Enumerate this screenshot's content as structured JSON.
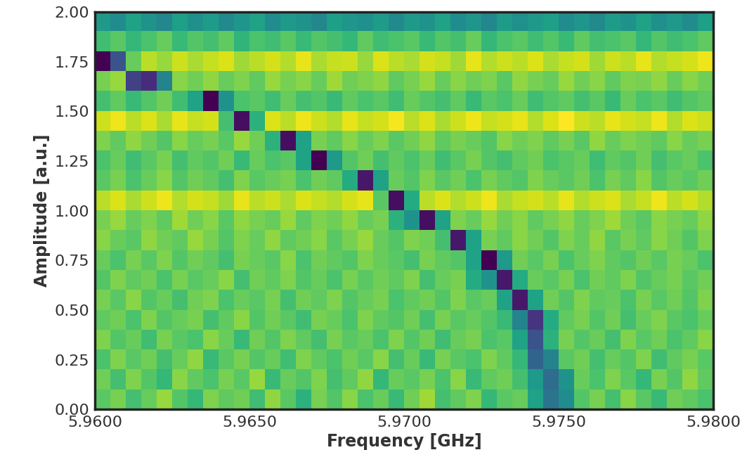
{
  "chart_data": {
    "type": "heatmap",
    "x_label": "Frequency [GHz]",
    "y_label": "Amplitude [a.u.]",
    "xlim": [
      5.96,
      5.98
    ],
    "ylim": [
      0,
      2.0
    ],
    "xticks": [
      {
        "value": 5.96,
        "label": "5.9600"
      },
      {
        "value": 5.965,
        "label": "5.9650"
      },
      {
        "value": 5.97,
        "label": "5.9700"
      },
      {
        "value": 5.975,
        "label": "5.9750"
      },
      {
        "value": 5.98,
        "label": "5.9800"
      }
    ],
    "yticks": [
      {
        "value": 0,
        "label": "0.00"
      },
      {
        "value": 0.25,
        "label": "0.25"
      },
      {
        "value": 0.5,
        "label": "0.50"
      },
      {
        "value": 0.75,
        "label": "0.75"
      },
      {
        "value": 1.0,
        "label": "1.00"
      },
      {
        "value": 1.25,
        "label": "1.25"
      },
      {
        "value": 1.5,
        "label": "1.50"
      },
      {
        "value": 1.75,
        "label": "1.75"
      },
      {
        "value": 2.0,
        "label": "2.00"
      }
    ],
    "grid": false,
    "cells": [
      [
        58,
        62,
        55,
        60,
        66,
        57,
        52,
        63,
        59,
        61,
        54,
        65,
        58,
        50,
        62,
        57,
        64,
        56,
        60,
        53,
        61,
        67,
        55,
        59,
        63,
        52,
        58,
        60,
        45,
        30,
        38,
        57,
        62,
        55,
        64,
        58,
        53,
        61,
        59,
        56
      ],
      [
        61,
        55,
        63,
        57,
        52,
        64,
        59,
        56,
        62,
        58,
        66,
        53,
        60,
        57,
        63,
        55,
        59,
        65,
        52,
        60,
        58,
        62,
        56,
        64,
        53,
        59,
        61,
        55,
        42,
        28,
        40,
        60,
        56,
        63,
        58,
        52,
        62,
        57,
        65,
        59
      ],
      [
        56,
        63,
        58,
        61,
        55,
        60,
        65,
        53,
        58,
        62,
        57,
        60,
        54,
        63,
        59,
        56,
        61,
        58,
        64,
        55,
        60,
        53,
        62,
        58,
        56,
        63,
        59,
        52,
        25,
        35,
        58,
        61,
        55,
        60,
        57,
        63,
        54,
        59,
        62,
        58
      ],
      [
        63,
        57,
        60,
        54,
        62,
        58,
        56,
        64,
        60,
        53,
        61,
        57,
        63,
        59,
        55,
        62,
        58,
        60,
        56,
        63,
        57,
        61,
        54,
        60,
        62,
        56,
        58,
        45,
        20,
        50,
        62,
        57,
        60,
        55,
        63,
        58,
        61,
        56,
        59,
        64
      ],
      [
        59,
        61,
        56,
        63,
        57,
        60,
        62,
        55,
        59,
        64,
        57,
        61,
        58,
        54,
        62,
        60,
        56,
        63,
        59,
        57,
        61,
        55,
        62,
        58,
        60,
        57,
        53,
        35,
        12,
        48,
        59,
        62,
        57,
        61,
        55,
        60,
        63,
        58,
        56,
        60
      ],
      [
        62,
        58,
        64,
        57,
        60,
        55,
        61,
        63,
        56,
        60,
        58,
        62,
        55,
        61,
        59,
        63,
        57,
        60,
        62,
        56,
        59,
        61,
        57,
        63,
        58,
        60,
        45,
        5,
        45,
        61,
        57,
        63,
        59,
        60,
        56,
        62,
        58,
        61,
        57,
        63
      ],
      [
        57,
        63,
        59,
        61,
        56,
        62,
        58,
        60,
        64,
        55,
        61,
        59,
        63,
        57,
        60,
        56,
        62,
        58,
        61,
        59,
        63,
        55,
        60,
        62,
        48,
        40,
        5,
        48,
        60,
        58,
        62,
        56,
        61,
        59,
        63,
        57,
        60,
        62,
        58,
        61
      ],
      [
        60,
        56,
        62,
        58,
        63,
        57,
        61,
        59,
        55,
        62,
        60,
        58,
        64,
        56,
        61,
        59,
        57,
        63,
        60,
        58,
        55,
        62,
        59,
        57,
        45,
        0,
        42,
        61,
        58,
        62,
        56,
        60,
        63,
        59,
        57,
        61,
        58,
        62,
        60,
        56
      ],
      [
        64,
        60,
        58,
        65,
        61,
        59,
        66,
        62,
        57,
        63,
        60,
        65,
        59,
        61,
        64,
        58,
        62,
        66,
        60,
        57,
        63,
        61,
        55,
        5,
        45,
        62,
        59,
        64,
        61,
        57,
        63,
        60,
        65,
        58,
        62,
        59,
        64,
        61,
        57,
        63
      ],
      [
        62,
        66,
        60,
        63,
        59,
        67,
        61,
        64,
        58,
        65,
        62,
        60,
        66,
        59,
        63,
        61,
        65,
        60,
        62,
        50,
        40,
        3,
        45,
        63,
        60,
        66,
        61,
        64,
        59,
        62,
        65,
        60,
        63,
        67,
        61,
        58,
        64,
        62,
        60,
        65
      ],
      [
        70,
        74,
        68,
        72,
        76,
        69,
        73,
        71,
        67,
        75,
        70,
        72,
        68,
        74,
        71,
        69,
        73,
        75,
        58,
        3,
        48,
        70,
        74,
        69,
        72,
        76,
        68,
        71,
        73,
        70,
        75,
        69,
        72,
        74,
        68,
        71,
        76,
        70,
        73,
        69
      ],
      [
        58,
        62,
        56,
        60,
        64,
        57,
        61,
        59,
        55,
        63,
        58,
        60,
        62,
        56,
        61,
        59,
        48,
        5,
        45,
        60,
        57,
        63,
        58,
        61,
        56,
        62,
        59,
        57,
        63,
        60,
        58,
        61,
        56,
        62,
        59,
        64,
        57,
        60,
        58,
        61
      ],
      [
        56,
        60,
        54,
        58,
        62,
        55,
        59,
        57,
        61,
        53,
        60,
        56,
        58,
        45,
        0,
        42,
        57,
        61,
        55,
        59,
        56,
        60,
        54,
        58,
        62,
        57,
        55,
        59,
        61,
        56,
        58,
        60,
        54,
        59,
        57,
        61,
        55,
        58,
        60,
        56
      ],
      [
        63,
        59,
        65,
        61,
        57,
        64,
        60,
        62,
        58,
        66,
        61,
        50,
        3,
        45,
        62,
        59,
        64,
        60,
        63,
        58,
        61,
        65,
        59,
        62,
        60,
        57,
        64,
        61,
        63,
        59,
        62,
        58,
        65,
        60,
        63,
        61,
        59,
        64,
        60,
        62
      ],
      [
        72,
        76,
        70,
        74,
        68,
        75,
        71,
        73,
        55,
        3,
        50,
        74,
        70,
        76,
        72,
        69,
        75,
        71,
        73,
        77,
        70,
        74,
        68,
        72,
        76,
        71,
        73,
        75,
        69,
        74,
        78,
        72,
        70,
        75,
        73,
        71,
        76,
        69,
        74,
        72
      ],
      [
        55,
        59,
        53,
        57,
        61,
        54,
        45,
        0,
        40,
        56,
        58,
        54,
        60,
        55,
        57,
        53,
        59,
        56,
        58,
        54,
        60,
        57,
        55,
        59,
        53,
        58,
        56,
        60,
        54,
        57,
        59,
        55,
        58,
        53,
        60,
        56,
        58,
        54,
        57,
        59
      ],
      [
        62,
        66,
        15,
        10,
        35,
        64,
        61,
        65,
        60,
        63,
        59,
        66,
        62,
        64,
        60,
        67,
        61,
        63,
        65,
        59,
        62,
        66,
        60,
        64,
        61,
        63,
        58,
        65,
        62,
        60,
        66,
        61,
        64,
        59,
        63,
        62,
        65,
        60,
        64,
        61
      ],
      [
        0,
        20,
        60,
        70,
        66,
        72,
        68,
        71,
        74,
        67,
        70,
        73,
        69,
        75,
        68,
        71,
        72,
        66,
        74,
        70,
        68,
        73,
        71,
        67,
        75,
        69,
        72,
        70,
        74,
        68,
        71,
        73,
        67,
        72,
        70,
        75,
        69,
        71,
        73,
        76
      ],
      [
        54,
        58,
        52,
        56,
        60,
        53,
        57,
        55,
        59,
        51,
        56,
        54,
        58,
        53,
        57,
        55,
        52,
        59,
        54,
        56,
        58,
        53,
        57,
        55,
        60,
        52,
        56,
        58,
        54,
        57,
        53,
        59,
        55,
        56,
        58,
        52,
        57,
        54,
        56,
        59
      ],
      [
        42,
        38,
        45,
        40,
        36,
        44,
        39,
        43,
        37,
        41,
        45,
        38,
        42,
        40,
        36,
        44,
        41,
        39,
        43,
        37,
        42,
        40,
        45,
        38,
        41,
        36,
        43,
        39,
        42,
        44,
        38,
        41,
        37,
        43,
        40,
        45,
        39,
        42,
        38,
        44
      ]
    ]
  }
}
